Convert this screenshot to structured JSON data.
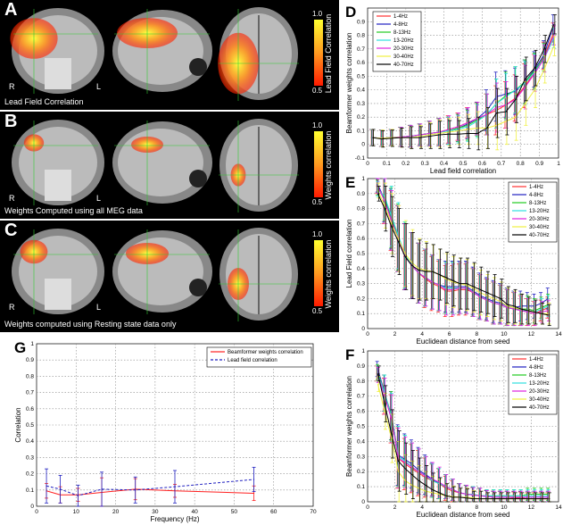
{
  "panels": [
    {
      "label": "A",
      "caption": "Lead Field Correlation",
      "colorbar": {
        "title": "Lead Field Correlation",
        "max": "1.0",
        "min": "0.5"
      },
      "left": "R",
      "right": "L",
      "blob": "large"
    },
    {
      "label": "B",
      "caption": "Weights Computed using all MEG data",
      "colorbar": {
        "title": "Weights correlation",
        "max": "1.0",
        "min": "0.5"
      },
      "left": "R",
      "right": "L",
      "blob": "small"
    },
    {
      "label": "C",
      "caption": "Weights computed using Resting state data only",
      "colorbar": {
        "title": "Weights correlation",
        "max": "1.0",
        "min": "0.5"
      },
      "left": "R",
      "right": "L",
      "blob": "medium"
    }
  ],
  "colors": {
    "1-4Hz": "#ff3030",
    "4-8Hz": "#2020c0",
    "8-13Hz": "#20cc20",
    "13-20Hz": "#30e0e0",
    "20-30Hz": "#e020e0",
    "30-40Hz": "#f0f040",
    "40-70Hz": "#000000"
  },
  "chart_data": [
    {
      "panel": "D",
      "type": "line",
      "xlabel": "Lead field correlation",
      "ylabel": "Beamformer weights correlation",
      "xlim": [
        0,
        1
      ],
      "ylim": [
        -0.1,
        1
      ],
      "xticks": [
        "0",
        "0.1",
        "0.2",
        "0.3",
        "0.4",
        "0.5",
        "0.6",
        "0.7",
        "0.8",
        "0.9",
        "1"
      ],
      "yticks": [
        "-0.1",
        "0",
        "0.1",
        "0.2",
        "0.3",
        "0.4",
        "0.5",
        "0.6",
        "0.7",
        "0.8",
        "0.9"
      ],
      "grid": true,
      "legend": "top-left",
      "error_bars": true,
      "x": [
        0.025,
        0.075,
        0.125,
        0.175,
        0.225,
        0.275,
        0.325,
        0.375,
        0.425,
        0.475,
        0.525,
        0.575,
        0.625,
        0.675,
        0.725,
        0.775,
        0.825,
        0.875,
        0.925,
        0.975
      ],
      "err": [
        0.06,
        0.06,
        0.06,
        0.07,
        0.08,
        0.08,
        0.09,
        0.1,
        0.1,
        0.1,
        0.11,
        0.12,
        0.15,
        0.18,
        0.17,
        0.17,
        0.16,
        0.13,
        0.1,
        0.07
      ],
      "series": [
        {
          "name": "1-4Hz",
          "values": [
            0.05,
            0.045,
            0.05,
            0.055,
            0.06,
            0.07,
            0.08,
            0.09,
            0.11,
            0.13,
            0.16,
            0.19,
            0.22,
            0.25,
            0.29,
            0.34,
            0.43,
            0.53,
            0.65,
            0.82
          ]
        },
        {
          "name": "4-8Hz",
          "values": [
            0.05,
            0.045,
            0.05,
            0.055,
            0.06,
            0.07,
            0.08,
            0.09,
            0.1,
            0.12,
            0.15,
            0.19,
            0.25,
            0.35,
            0.37,
            0.39,
            0.46,
            0.55,
            0.66,
            0.88
          ]
        },
        {
          "name": "8-13Hz",
          "values": [
            0.05,
            0.045,
            0.05,
            0.055,
            0.06,
            0.07,
            0.08,
            0.09,
            0.1,
            0.12,
            0.14,
            0.18,
            0.22,
            0.3,
            0.36,
            0.4,
            0.46,
            0.54,
            0.64,
            0.8
          ]
        },
        {
          "name": "13-20Hz",
          "values": [
            0.05,
            0.045,
            0.05,
            0.055,
            0.06,
            0.07,
            0.08,
            0.09,
            0.1,
            0.11,
            0.13,
            0.17,
            0.22,
            0.3,
            0.35,
            0.4,
            0.45,
            0.53,
            0.63,
            0.78
          ]
        },
        {
          "name": "20-30Hz",
          "values": [
            0.05,
            0.045,
            0.05,
            0.055,
            0.06,
            0.07,
            0.08,
            0.09,
            0.11,
            0.13,
            0.16,
            0.19,
            0.22,
            0.27,
            0.29,
            0.33,
            0.42,
            0.52,
            0.63,
            0.8
          ]
        },
        {
          "name": "30-40Hz",
          "values": [
            0.05,
            0.045,
            0.05,
            0.05,
            0.05,
            0.06,
            0.07,
            0.08,
            0.09,
            0.1,
            0.11,
            0.12,
            0.12,
            0.14,
            0.17,
            0.2,
            0.3,
            0.4,
            0.55,
            0.72
          ]
        },
        {
          "name": "40-70Hz",
          "values": [
            0.05,
            0.04,
            0.045,
            0.05,
            0.05,
            0.05,
            0.06,
            0.07,
            0.075,
            0.075,
            0.08,
            0.08,
            0.12,
            0.23,
            0.24,
            0.33,
            0.48,
            0.56,
            0.7,
            0.88
          ]
        }
      ]
    },
    {
      "panel": "E",
      "type": "line",
      "xlabel": "Euclidean distance from seed",
      "ylabel": "Lead Field correlation",
      "xlim": [
        0,
        14
      ],
      "ylim": [
        0,
        1
      ],
      "xticks": [
        "0",
        "2",
        "4",
        "6",
        "8",
        "10",
        "12",
        "14"
      ],
      "yticks": [
        "0",
        "0.1",
        "0.2",
        "0.3",
        "0.4",
        "0.5",
        "0.6",
        "0.7",
        "0.8",
        "0.9",
        "1"
      ],
      "grid": true,
      "legend": "top-right",
      "error_bars": true,
      "x": [
        0.75,
        1.25,
        1.75,
        2.25,
        2.75,
        3.25,
        3.75,
        4.25,
        4.75,
        5.25,
        5.75,
        6.25,
        6.75,
        7.25,
        7.75,
        8.25,
        8.75,
        9.25,
        9.75,
        10.25,
        10.75,
        11.25,
        11.75,
        12.25,
        12.75,
        13.25
      ],
      "err": [
        0.05,
        0.15,
        0.2,
        0.22,
        0.22,
        0.22,
        0.2,
        0.19,
        0.18,
        0.17,
        0.17,
        0.17,
        0.17,
        0.17,
        0.16,
        0.15,
        0.14,
        0.14,
        0.13,
        0.12,
        0.11,
        0.1,
        0.09,
        0.08,
        0.07,
        0.07
      ],
      "series": [
        {
          "name": "1-4Hz",
          "values": [
            0.95,
            0.85,
            0.72,
            0.6,
            0.48,
            0.42,
            0.37,
            0.33,
            0.3,
            0.28,
            0.25,
            0.25,
            0.26,
            0.26,
            0.24,
            0.21,
            0.19,
            0.17,
            0.16,
            0.14,
            0.13,
            0.12,
            0.11,
            0.1,
            0.12,
            0.14
          ]
        },
        {
          "name": "4-8Hz",
          "values": [
            0.96,
            0.86,
            0.73,
            0.6,
            0.48,
            0.42,
            0.37,
            0.34,
            0.31,
            0.29,
            0.28,
            0.28,
            0.28,
            0.28,
            0.25,
            0.22,
            0.2,
            0.18,
            0.17,
            0.15,
            0.14,
            0.15,
            0.15,
            0.15,
            0.17,
            0.2
          ]
        },
        {
          "name": "8-13Hz",
          "values": [
            0.94,
            0.87,
            0.74,
            0.61,
            0.49,
            0.42,
            0.37,
            0.34,
            0.31,
            0.29,
            0.27,
            0.27,
            0.27,
            0.27,
            0.24,
            0.21,
            0.19,
            0.17,
            0.16,
            0.14,
            0.13,
            0.13,
            0.13,
            0.12,
            0.14,
            0.16
          ]
        },
        {
          "name": "13-20Hz",
          "values": [
            0.93,
            0.88,
            0.75,
            0.62,
            0.49,
            0.42,
            0.37,
            0.34,
            0.31,
            0.29,
            0.27,
            0.27,
            0.27,
            0.27,
            0.24,
            0.21,
            0.19,
            0.17,
            0.16,
            0.14,
            0.13,
            0.12,
            0.12,
            0.11,
            0.13,
            0.15
          ]
        },
        {
          "name": "20-30Hz",
          "values": [
            0.95,
            0.85,
            0.72,
            0.6,
            0.48,
            0.42,
            0.37,
            0.34,
            0.31,
            0.29,
            0.26,
            0.26,
            0.27,
            0.27,
            0.24,
            0.21,
            0.19,
            0.17,
            0.16,
            0.14,
            0.13,
            0.12,
            0.11,
            0.1,
            0.11,
            0.12
          ]
        },
        {
          "name": "30-40Hz",
          "values": [
            0.92,
            0.82,
            0.7,
            0.6,
            0.5,
            0.44,
            0.4,
            0.39,
            0.38,
            0.36,
            0.33,
            0.31,
            0.3,
            0.29,
            0.27,
            0.24,
            0.22,
            0.2,
            0.18,
            0.15,
            0.14,
            0.13,
            0.12,
            0.11,
            0.1,
            0.1
          ]
        },
        {
          "name": "40-70Hz",
          "values": [
            0.9,
            0.8,
            0.68,
            0.58,
            0.48,
            0.42,
            0.39,
            0.38,
            0.38,
            0.36,
            0.34,
            0.32,
            0.3,
            0.3,
            0.28,
            0.26,
            0.24,
            0.22,
            0.2,
            0.16,
            0.15,
            0.13,
            0.12,
            0.11,
            0.1,
            0.09
          ]
        }
      ]
    },
    {
      "panel": "F",
      "type": "line",
      "xlabel": "Euclidean distance from seed",
      "ylabel": "Beamformer weights correlation",
      "xlim": [
        0,
        14
      ],
      "ylim": [
        0,
        1
      ],
      "xticks": [
        "0",
        "2",
        "4",
        "6",
        "8",
        "10",
        "12",
        "14"
      ],
      "yticks": [
        "0",
        "0.1",
        "0.2",
        "0.3",
        "0.4",
        "0.5",
        "0.6",
        "0.7",
        "0.8",
        "0.9",
        "1"
      ],
      "grid": true,
      "legend": "top-right",
      "error_bars": true,
      "x": [
        0.75,
        1.25,
        1.75,
        2.25,
        2.75,
        3.25,
        3.75,
        4.25,
        4.75,
        5.25,
        5.75,
        6.25,
        6.75,
        7.25,
        7.75,
        8.25,
        8.75,
        9.25,
        9.75,
        10.25,
        10.75,
        11.25,
        11.75,
        12.25,
        12.75,
        13.25
      ],
      "err": [
        0.05,
        0.12,
        0.16,
        0.2,
        0.17,
        0.16,
        0.15,
        0.13,
        0.11,
        0.1,
        0.08,
        0.07,
        0.06,
        0.06,
        0.05,
        0.05,
        0.04,
        0.04,
        0.04,
        0.04,
        0.04,
        0.04,
        0.04,
        0.04,
        0.04,
        0.04
      ],
      "series": [
        {
          "name": "1-4Hz",
          "values": [
            0.85,
            0.7,
            0.55,
            0.29,
            0.25,
            0.22,
            0.19,
            0.16,
            0.14,
            0.12,
            0.09,
            0.07,
            0.06,
            0.05,
            0.045,
            0.04,
            0.035,
            0.03,
            0.03,
            0.03,
            0.025,
            0.025,
            0.02,
            0.02,
            0.02,
            0.02
          ]
        },
        {
          "name": "4-8Hz",
          "values": [
            0.88,
            0.72,
            0.57,
            0.31,
            0.28,
            0.25,
            0.21,
            0.18,
            0.15,
            0.12,
            0.1,
            0.08,
            0.06,
            0.05,
            0.045,
            0.04,
            0.035,
            0.03,
            0.03,
            0.03,
            0.03,
            0.03,
            0.03,
            0.03,
            0.03,
            0.03
          ]
        },
        {
          "name": "8-13Hz",
          "values": [
            0.86,
            0.72,
            0.57,
            0.3,
            0.27,
            0.23,
            0.2,
            0.17,
            0.14,
            0.12,
            0.1,
            0.08,
            0.06,
            0.05,
            0.05,
            0.04,
            0.04,
            0.04,
            0.04,
            0.04,
            0.04,
            0.04,
            0.05,
            0.05,
            0.05,
            0.05
          ]
        },
        {
          "name": "13-20Hz",
          "values": [
            0.85,
            0.72,
            0.56,
            0.3,
            0.27,
            0.23,
            0.2,
            0.17,
            0.14,
            0.12,
            0.1,
            0.08,
            0.06,
            0.05,
            0.05,
            0.04,
            0.04,
            0.04,
            0.04,
            0.04,
            0.04,
            0.04,
            0.04,
            0.04,
            0.04,
            0.04
          ]
        },
        {
          "name": "20-30Hz",
          "values": [
            0.84,
            0.7,
            0.55,
            0.29,
            0.26,
            0.23,
            0.2,
            0.17,
            0.15,
            0.13,
            0.1,
            0.08,
            0.06,
            0.05,
            0.045,
            0.04,
            0.035,
            0.03,
            0.03,
            0.03,
            0.03,
            0.03,
            0.03,
            0.03,
            0.03,
            0.03
          ]
        },
        {
          "name": "30-40Hz",
          "values": [
            0.78,
            0.6,
            0.42,
            0.2,
            0.14,
            0.11,
            0.09,
            0.07,
            0.06,
            0.05,
            0.04,
            0.035,
            0.03,
            0.03,
            0.025,
            0.02,
            0.02,
            0.02,
            0.02,
            0.02,
            0.02,
            0.02,
            0.02,
            0.02,
            0.02,
            0.02
          ]
        },
        {
          "name": "40-70Hz",
          "values": [
            0.85,
            0.65,
            0.45,
            0.27,
            0.22,
            0.18,
            0.14,
            0.11,
            0.08,
            0.06,
            0.04,
            0.03,
            0.03,
            0.025,
            0.02,
            0.02,
            0.02,
            0.02,
            0.02,
            0.02,
            0.02,
            0.02,
            0.02,
            0.02,
            0.02,
            0.02
          ]
        }
      ]
    },
    {
      "panel": "G",
      "type": "line",
      "xlabel": "Frequency (Hz)",
      "ylabel": "Correlation",
      "xlim": [
        0,
        70
      ],
      "ylim": [
        0,
        1
      ],
      "xticks": [
        "0",
        "10",
        "20",
        "30",
        "40",
        "50",
        "60",
        "70"
      ],
      "yticks": [
        "0",
        "0.1",
        "0.2",
        "0.3",
        "0.4",
        "0.5",
        "0.6",
        "0.7",
        "0.8",
        "0.9",
        "1"
      ],
      "grid": true,
      "legend": "top-right",
      "error_bars": true,
      "x": [
        2.5,
        6,
        10.5,
        16.5,
        25,
        35,
        55
      ],
      "series": [
        {
          "name": "Beamformer weights correlation",
          "color": "#ff2020",
          "dash": false,
          "values": [
            0.095,
            0.07,
            0.07,
            0.085,
            0.105,
            0.095,
            0.08
          ],
          "err": [
            0.045,
            0.05,
            0.04,
            0.09,
            0.065,
            0.04,
            0.045
          ]
        },
        {
          "name": "Lead field correlation",
          "color": "#2020c0",
          "dash": true,
          "values": [
            0.125,
            0.105,
            0.065,
            0.105,
            0.1,
            0.12,
            0.165
          ],
          "err": [
            0.105,
            0.085,
            0.065,
            0.105,
            0.08,
            0.1,
            0.075
          ]
        }
      ]
    }
  ]
}
